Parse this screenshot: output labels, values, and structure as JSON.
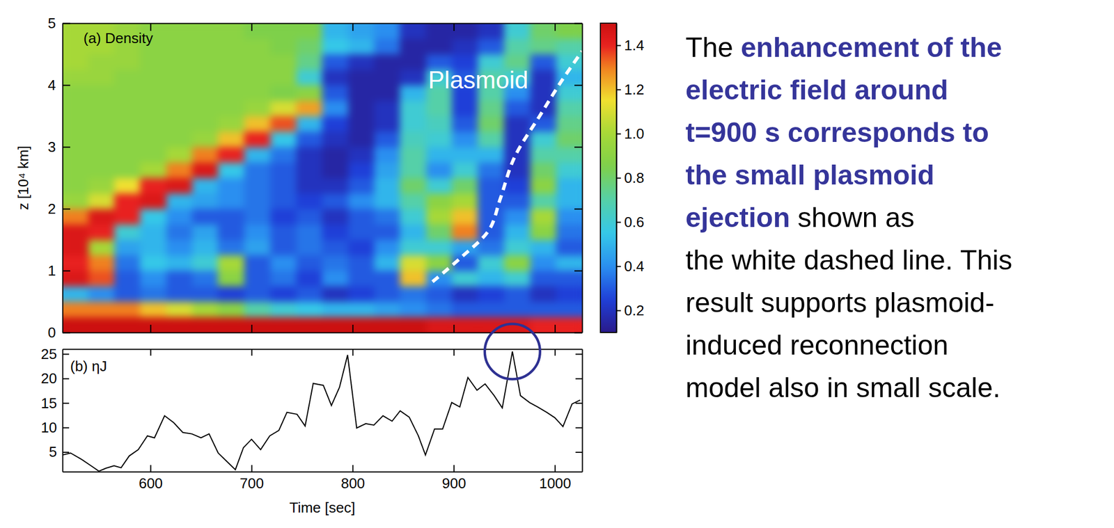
{
  "chart_data": [
    {
      "type": "heatmap",
      "title": "(a) Density",
      "y_label": "z [10⁴ km]",
      "x": [
        526,
        552,
        577,
        603,
        629,
        654,
        680,
        706,
        732,
        757,
        783,
        809,
        834,
        860,
        886,
        911,
        937,
        963,
        989,
        1014
      ],
      "y": [
        0.125,
        0.375,
        0.625,
        0.875,
        1.125,
        1.375,
        1.625,
        1.875,
        2.125,
        2.375,
        2.625,
        2.875,
        3.125,
        3.375,
        3.625,
        3.875,
        4.125,
        4.375,
        4.625,
        4.875
      ],
      "z": [
        [
          1.5,
          1.5,
          1.5,
          1.5,
          1.5,
          1.5,
          1.5,
          1.5,
          1.5,
          1.5,
          1.5,
          1.5,
          1.5,
          1.5,
          1.45,
          1.45,
          1.45,
          1.45,
          1.4,
          1.4
        ],
        [
          1.3,
          1.3,
          1.3,
          1.2,
          1.1,
          1.0,
          0.9,
          0.7,
          0.6,
          0.55,
          0.5,
          0.5,
          0.45,
          0.4,
          0.35,
          0.3,
          0.3,
          0.3,
          0.3,
          0.3
        ],
        [
          0.5,
          0.4,
          0.3,
          0.35,
          0.3,
          0.3,
          0.25,
          0.3,
          0.25,
          0.3,
          0.2,
          0.25,
          0.3,
          0.35,
          0.3,
          0.2,
          0.25,
          0.3,
          0.2,
          0.25
        ],
        [
          1.45,
          1.35,
          0.3,
          0.4,
          0.3,
          0.35,
          0.9,
          0.3,
          0.35,
          0.25,
          0.4,
          0.3,
          0.3,
          1.2,
          0.4,
          0.6,
          0.5,
          0.6,
          0.3,
          0.3
        ],
        [
          1.4,
          1.3,
          0.35,
          0.55,
          0.5,
          0.6,
          1.0,
          0.3,
          0.4,
          0.3,
          0.35,
          0.3,
          0.5,
          1.1,
          0.9,
          0.3,
          0.6,
          0.9,
          0.4,
          0.5
        ],
        [
          1.45,
          1.0,
          0.45,
          0.5,
          0.4,
          0.5,
          0.35,
          0.45,
          0.3,
          0.35,
          0.3,
          0.25,
          0.4,
          0.6,
          0.6,
          0.45,
          0.35,
          0.6,
          0.5,
          0.3
        ],
        [
          1.45,
          1.4,
          0.6,
          0.5,
          0.35,
          0.45,
          0.3,
          0.4,
          0.3,
          0.35,
          0.25,
          0.3,
          0.3,
          0.5,
          0.8,
          1.3,
          0.3,
          0.5,
          0.9,
          0.35
        ],
        [
          1.3,
          1.45,
          1.4,
          0.55,
          0.4,
          0.3,
          0.3,
          0.35,
          0.25,
          0.3,
          0.2,
          0.3,
          0.35,
          0.6,
          1.0,
          1.2,
          0.3,
          0.4,
          1.0,
          0.4
        ],
        [
          0.95,
          1.1,
          1.4,
          1.45,
          0.5,
          0.45,
          0.4,
          0.35,
          0.3,
          0.25,
          0.3,
          0.4,
          0.5,
          0.7,
          0.9,
          1.0,
          0.3,
          0.3,
          0.7,
          0.5
        ],
        [
          0.9,
          0.95,
          1.15,
          1.4,
          1.45,
          0.5,
          0.4,
          0.35,
          0.3,
          0.2,
          0.2,
          0.3,
          0.5,
          0.8,
          0.6,
          0.8,
          0.3,
          0.25,
          0.9,
          0.5
        ],
        [
          0.9,
          0.9,
          0.9,
          1.0,
          1.3,
          1.45,
          0.55,
          0.35,
          0.3,
          0.2,
          0.15,
          0.25,
          0.45,
          0.7,
          0.4,
          0.6,
          0.35,
          0.2,
          0.8,
          0.6
        ],
        [
          0.9,
          0.9,
          0.9,
          0.9,
          1.0,
          1.3,
          1.4,
          0.5,
          0.35,
          0.2,
          0.15,
          0.2,
          0.4,
          0.7,
          0.5,
          0.5,
          0.5,
          0.2,
          0.7,
          0.7
        ],
        [
          0.9,
          0.9,
          0.9,
          0.9,
          0.9,
          0.95,
          1.2,
          1.4,
          0.55,
          0.3,
          0.2,
          0.15,
          0.3,
          0.65,
          0.6,
          0.4,
          0.7,
          0.2,
          0.6,
          0.8
        ],
        [
          0.9,
          0.9,
          0.9,
          0.9,
          0.9,
          0.9,
          0.95,
          1.2,
          1.35,
          0.5,
          0.25,
          0.15,
          0.2,
          0.6,
          0.65,
          0.3,
          0.8,
          0.2,
          0.3,
          0.75
        ],
        [
          0.9,
          0.9,
          0.9,
          0.9,
          0.9,
          0.9,
          0.9,
          0.95,
          1.1,
          1.25,
          0.4,
          0.15,
          0.2,
          0.6,
          0.7,
          0.25,
          0.75,
          0.3,
          0.2,
          0.7
        ],
        [
          0.9,
          0.9,
          0.9,
          0.9,
          0.9,
          0.9,
          0.9,
          0.9,
          0.85,
          0.9,
          0.3,
          0.15,
          0.15,
          0.5,
          0.7,
          0.25,
          0.7,
          0.4,
          0.2,
          0.6
        ],
        [
          0.95,
          0.95,
          0.9,
          0.9,
          0.9,
          0.9,
          0.9,
          0.9,
          0.9,
          0.6,
          0.2,
          0.15,
          0.15,
          0.2,
          0.6,
          0.3,
          0.7,
          0.6,
          0.2,
          0.5
        ],
        [
          1.0,
          0.95,
          0.95,
          0.9,
          0.9,
          0.9,
          0.9,
          0.9,
          0.9,
          0.75,
          0.3,
          0.2,
          0.15,
          0.15,
          0.3,
          0.25,
          0.6,
          0.75,
          0.3,
          0.6
        ],
        [
          1.0,
          1.0,
          0.95,
          0.9,
          0.9,
          0.9,
          0.9,
          0.9,
          0.85,
          0.8,
          0.55,
          0.5,
          0.35,
          0.15,
          0.15,
          0.2,
          0.3,
          0.7,
          0.75,
          0.7
        ],
        [
          1.0,
          1.0,
          0.95,
          0.9,
          0.9,
          0.9,
          0.9,
          0.85,
          0.85,
          0.85,
          0.5,
          0.45,
          0.4,
          0.2,
          0.15,
          0.15,
          0.2,
          0.6,
          0.8,
          0.85
        ]
      ],
      "xlim": [
        513,
        1027
      ],
      "ylim": [
        0,
        5
      ],
      "xticks": [
        600,
        700,
        800,
        900,
        1000
      ],
      "yticks": [
        0,
        1,
        2,
        3,
        4,
        5
      ],
      "tick_labels": "y",
      "colorbar": {
        "range": [
          0.1,
          1.5
        ],
        "ticks": [
          0.2,
          0.4,
          0.6,
          0.8,
          {
            "value": 1,
            "label": "1.0"
          },
          1.2,
          1.4
        ]
      },
      "annotations": [
        {
          "text": "Plasmoid",
          "x": [
            879,
            907,
            935,
            946,
            960,
            985,
            1006,
            1027
          ],
          "y": [
            0.82,
            1.21,
            1.66,
            2.16,
            2.83,
            3.5,
            4.05,
            4.55
          ],
          "line_style": "dashed",
          "color": "#ffffff"
        }
      ]
    },
    {
      "type": "line",
      "title": "(b) ηJ",
      "x_label": "Time [sec]",
      "x": [
        513,
        521,
        532,
        542,
        549,
        556,
        564,
        571,
        579,
        588,
        597,
        604,
        614,
        623,
        632,
        641,
        650,
        658,
        667,
        676,
        684,
        692,
        700,
        709,
        718,
        727,
        735,
        745,
        753,
        761,
        771,
        779,
        787,
        795,
        804,
        813,
        821,
        830,
        839,
        847,
        856,
        865,
        872,
        881,
        889,
        898,
        906,
        914,
        923,
        931,
        940,
        948,
        958,
        966,
        975,
        983,
        992,
        1000,
        1008,
        1017,
        1025
      ],
      "values": [
        4.4,
        4.8,
        3.5,
        2.1,
        1.1,
        1.7,
        2.2,
        1.8,
        4.2,
        5.5,
        8.3,
        7.9,
        12.4,
        11,
        9,
        8.7,
        7.9,
        8.7,
        4.8,
        3,
        1.4,
        5.9,
        7.6,
        5.5,
        8.3,
        9.4,
        13.1,
        12.7,
        10.3,
        19,
        18.6,
        14.5,
        18.2,
        24.8,
        9.9,
        10.8,
        10.5,
        12.4,
        11.3,
        13.4,
        12.1,
        8.3,
        4.4,
        9.7,
        9.7,
        15.1,
        14.2,
        20.2,
        17.6,
        18.9,
        16.5,
        14,
        25.5,
        16.5,
        15.1,
        14.2,
        13.1,
        12,
        10.2,
        14.8,
        15.6
      ],
      "color": "#000000",
      "xlim": [
        513,
        1027
      ],
      "ylim": [
        1,
        26
      ],
      "xticks": [
        600,
        700,
        800,
        900,
        1000
      ],
      "yticks": [
        5,
        10,
        15,
        20,
        25
      ]
    }
  ],
  "slide_text": {
    "lines": [
      [
        {
          "text": "The ",
          "style": "plain"
        },
        {
          "text": "enhancement of the",
          "style": "highlight"
        }
      ],
      [
        {
          "text": "electric field around",
          "style": "highlight"
        }
      ],
      [
        {
          "text": "t=900 s corresponds to",
          "style": "highlight"
        }
      ],
      [
        {
          "text": "the small plasmoid",
          "style": "highlight"
        }
      ],
      [
        {
          "text": "ejection",
          "style": "highlight"
        },
        {
          "text": " shown as",
          "style": "plain"
        }
      ],
      [
        {
          "text": "the white dashed line. This",
          "style": "plain"
        }
      ],
      [
        {
          "text": "result supports plasmoid-",
          "style": "plain"
        }
      ],
      [
        {
          "text": "induced reconnection",
          "style": "plain"
        }
      ],
      [
        {
          "text": "model also in small scale.",
          "style": "plain"
        }
      ]
    ]
  }
}
